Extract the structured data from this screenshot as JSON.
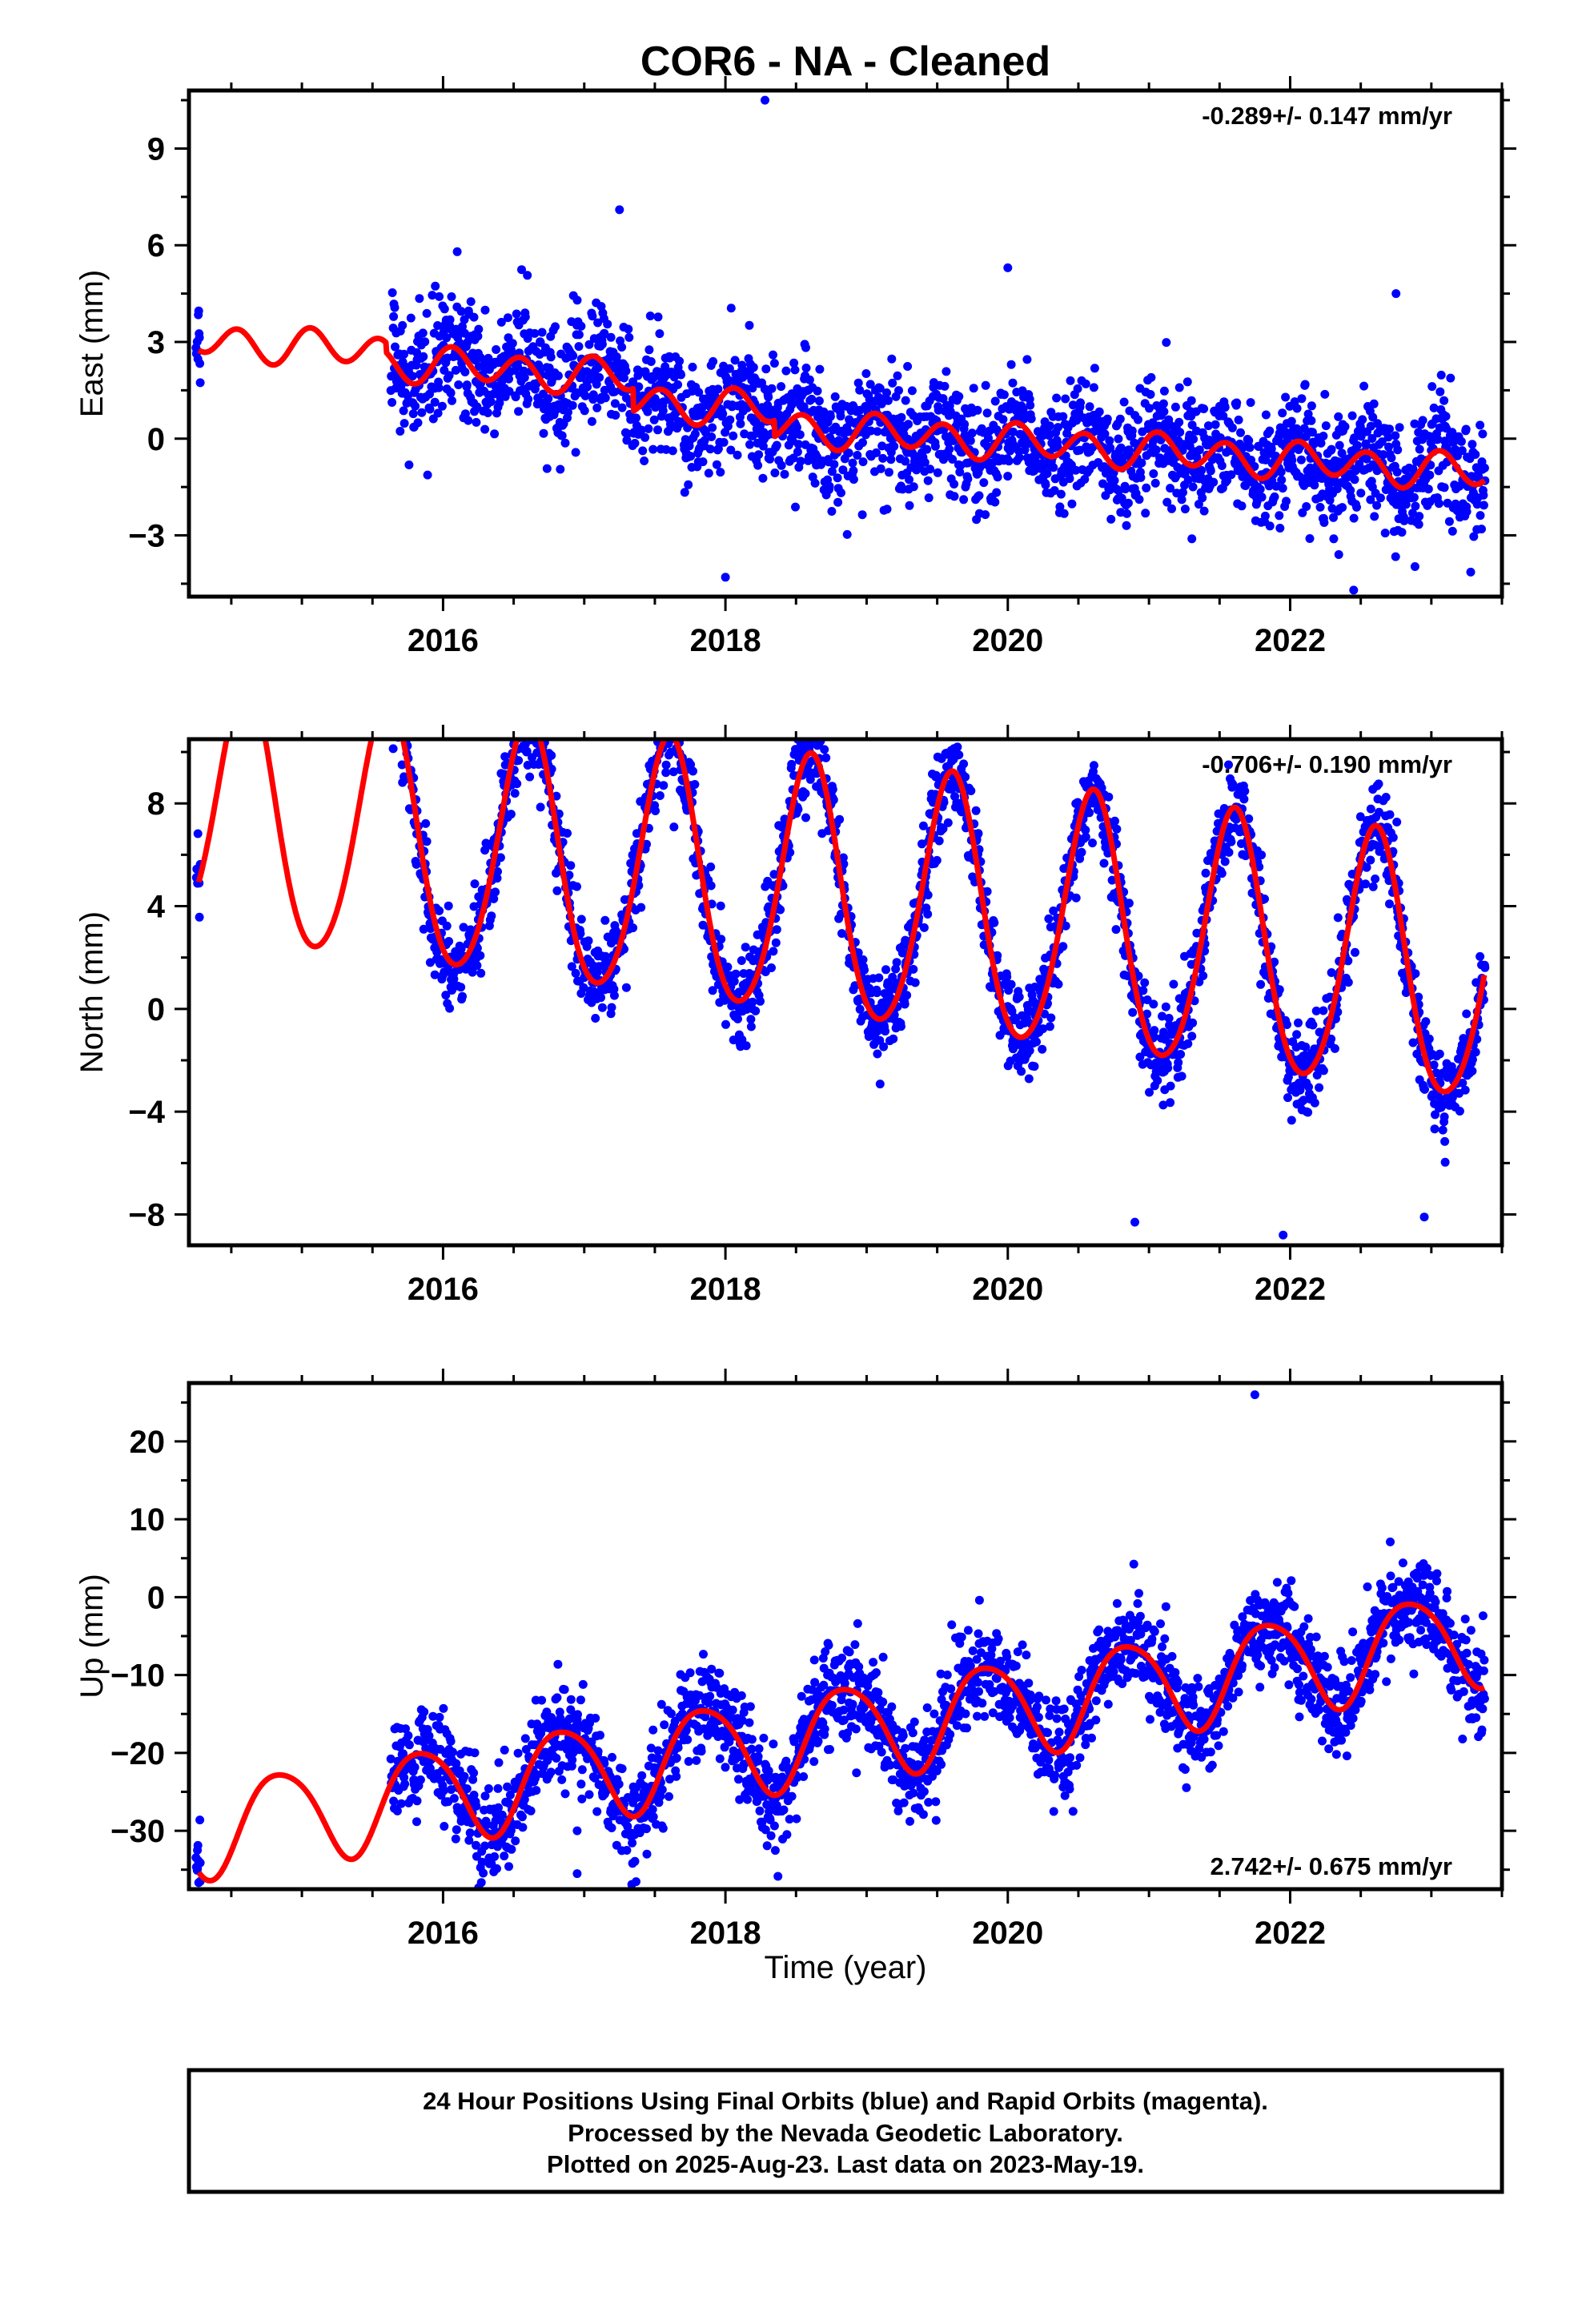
{
  "title": "COR6  - NA - Cleaned",
  "xlabel": "Time (year)",
  "caption": [
    "24 Hour Positions Using Final Orbits (blue) and Rapid Orbits (magenta).",
    "Processed by the Nevada Geodetic Laboratory.",
    "Plotted on 2025-Aug-23. Last data on 2023-May-19."
  ],
  "colors": {
    "final_orbits": "#0000ff",
    "model": "#ff0000",
    "axes": "#000000"
  },
  "chart_data": [
    {
      "type": "scatter",
      "ylabel": "East (mm)",
      "rate_label": "-0.289+/- 0.147 mm/yr",
      "rate_position": "top-right",
      "xlim": [
        2014.2,
        2023.5
      ],
      "ylim": [
        -4.9,
        10.8
      ],
      "x_ticks": [
        2016,
        2018,
        2020,
        2022
      ],
      "y_ticks": [
        -3,
        0,
        3,
        6,
        9
      ],
      "grid": false,
      "series": [
        {
          "values": {
            "data_segments": [
              [
                2014.25,
                2014.28
              ],
              [
                2015.63,
                2023.38
              ]
            ],
            "trend": [
              1.7,
              -0.289
            ],
            "annual": [
              0.15,
              0.05
            ],
            "semiannual": [
              0.3,
              0.4
            ],
            "noise_sd": 0.9,
            "model_start": 2014.27,
            "model_end": 2023.38,
            "model_breaks": [
              {
                "x": 2015.6,
                "offset": -0.3
              },
              {
                "x": 2017.35,
                "offset": -0.7
              },
              {
                "x": 2018.35,
                "offset": -0.5
              }
            ],
            "outliers": [
              [
                2018.28,
                10.5
              ],
              [
                2017.25,
                7.1
              ],
              [
                2016.1,
                5.8
              ],
              [
                2020.0,
                5.3
              ],
              [
                2022.75,
                4.5
              ],
              [
                2018.0,
                -4.3
              ],
              [
                2022.45,
                -4.7
              ]
            ]
          }
        }
      ]
    },
    {
      "type": "scatter",
      "ylabel": "North (mm)",
      "rate_label": "-0.706+/- 0.190 mm/yr",
      "rate_position": "top-right",
      "xlim": [
        2014.2,
        2023.5
      ],
      "ylim": [
        -9.2,
        10.5
      ],
      "x_ticks": [
        2016,
        2018,
        2020,
        2022
      ],
      "y_ticks": [
        -8,
        -4,
        0,
        4,
        8
      ],
      "grid": false,
      "series": [
        {
          "values": {
            "data_segments": [
              [
                2014.25,
                2014.28
              ],
              [
                2015.63,
                2023.38
              ]
            ],
            "trend": [
              4.2,
              -0.706
            ],
            "annual": [
              -3.0,
              -4.0
            ],
            "semiannual": [
              0.5,
              0.0
            ],
            "noise_sd": 0.9,
            "model_start": 2014.27,
            "model_end": 2023.38,
            "model_breaks": [],
            "outliers": [
              [
                2016.5,
                10.3
              ],
              [
                2021.95,
                -8.8
              ],
              [
                2020.9,
                -8.3
              ],
              [
                2022.95,
                -8.1
              ]
            ]
          }
        }
      ]
    },
    {
      "type": "scatter",
      "ylabel": "Up (mm)",
      "rate_label": "2.742+/- 0.675 mm/yr",
      "rate_position": "bottom-right",
      "xlim": [
        2014.2,
        2023.5
      ],
      "ylim": [
        -37.5,
        27.5
      ],
      "x_ticks": [
        2016,
        2018,
        2020,
        2022
      ],
      "y_ticks": [
        -30,
        -20,
        -10,
        0,
        10,
        20
      ],
      "grid": false,
      "series": [
        {
          "values": {
            "data_segments": [
              [
                2014.25,
                2014.28
              ],
              [
                2015.63,
                2023.38
              ]
            ],
            "trend": [
              -16.8,
              2.742
            ],
            "annual": [
              -5.0,
              3.5
            ],
            "semiannual": [
              0.8,
              0.0
            ],
            "noise_sd": 3.2,
            "model_start": 2014.27,
            "model_end": 2023.38,
            "model_breaks": [],
            "outliers": [
              [
                2014.28,
                -36.5
              ],
              [
                2014.26,
                -32.5
              ],
              [
                2016.95,
                -35.5
              ],
              [
                2016.95,
                -30.0
              ],
              [
                2021.75,
                26.0
              ],
              [
                2018.1,
                -26.0
              ],
              [
                2016.1,
                -27.0
              ]
            ]
          }
        }
      ]
    }
  ]
}
